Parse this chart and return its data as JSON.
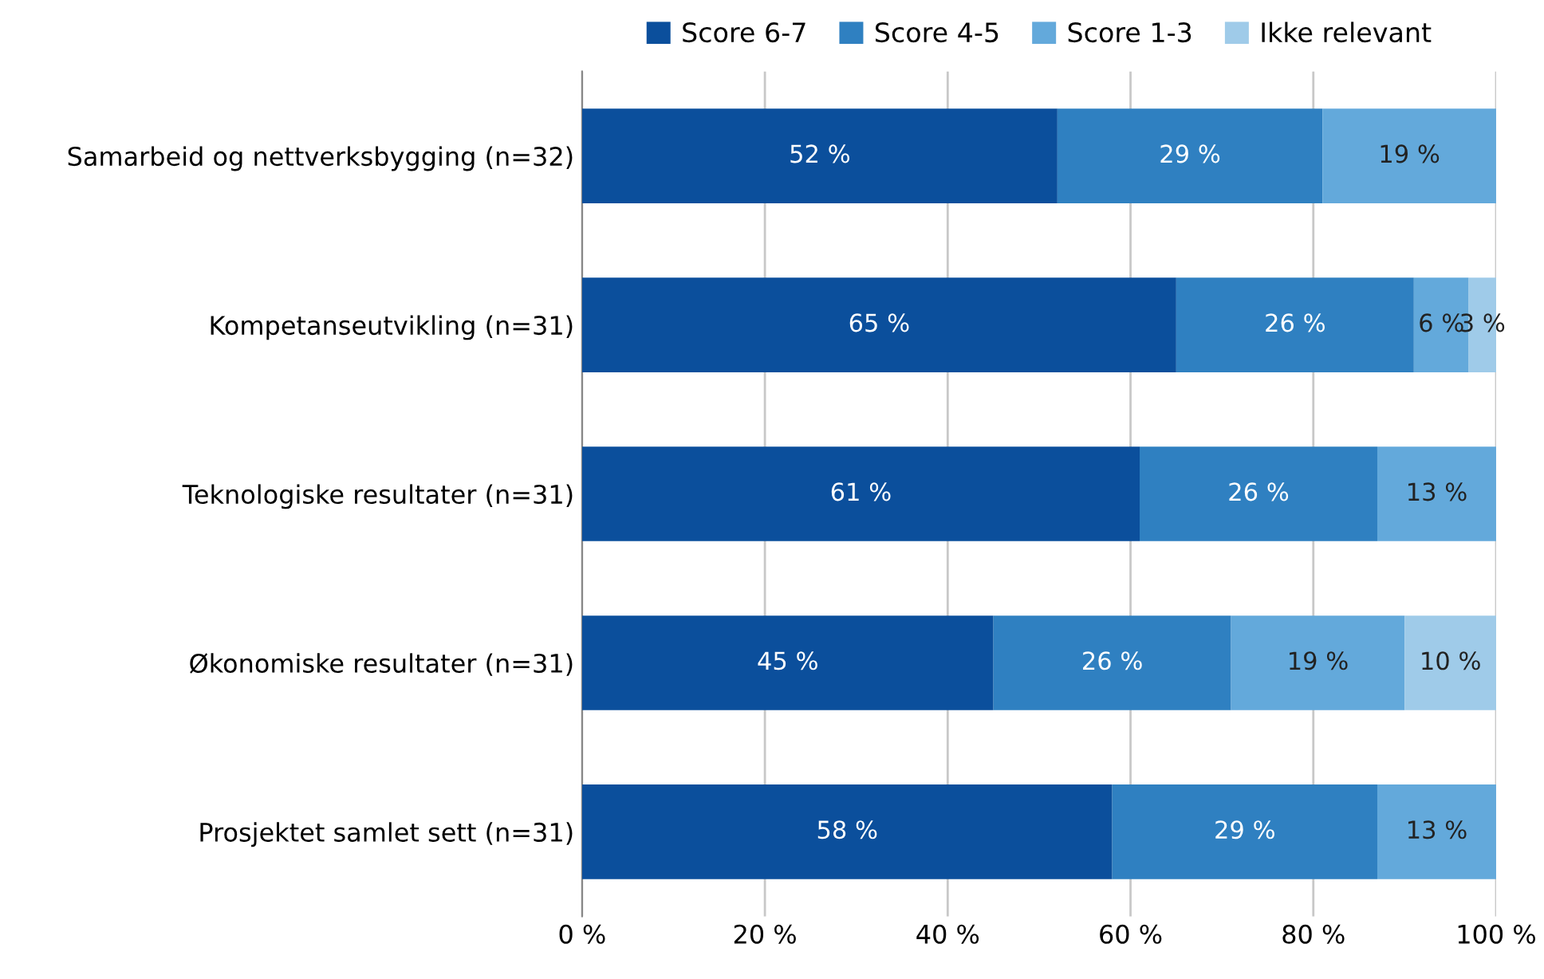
{
  "chart_data": {
    "type": "bar",
    "orientation": "horizontal",
    "stacked": true,
    "categories": [
      "Samarbeid og nettverksbygging (n=32)",
      "Kompetanseutvikling (n=31)",
      "Teknologiske resultater (n=31)",
      "Økonomiske resultater (n=31)",
      "Prosjektet samlet sett (n=31)"
    ],
    "series": [
      {
        "name": "Score 6-7",
        "color": "#0b4f9c",
        "values": [
          52,
          65,
          61,
          45,
          58
        ],
        "value_labels": [
          "52 %",
          "65 %",
          "61 %",
          "45 %",
          "58 %"
        ]
      },
      {
        "name": "Score 4-5",
        "color": "#2f80c1",
        "values": [
          29,
          26,
          26,
          26,
          29
        ],
        "value_labels": [
          "29 %",
          "26 %",
          "26 %",
          "26 %",
          "29 %"
        ]
      },
      {
        "name": "Score 1-3",
        "color": "#63a9db",
        "values": [
          19,
          6,
          13,
          19,
          13
        ],
        "value_labels": [
          "19 %",
          "6 %",
          "13 %",
          "19 %",
          "13 %"
        ]
      },
      {
        "name": "Ikke relevant",
        "color": "#9fcbe9",
        "values": [
          0,
          3,
          0,
          10,
          0
        ],
        "value_labels": [
          null,
          "3 %",
          null,
          "10 %",
          null
        ]
      }
    ],
    "xlim": [
      0,
      100
    ],
    "xticks": [
      {
        "value": 0,
        "label": "0 %"
      },
      {
        "value": 20,
        "label": "20 %"
      },
      {
        "value": 40,
        "label": "40 %"
      },
      {
        "value": 60,
        "label": "60 %"
      },
      {
        "value": 80,
        "label": "80 %"
      },
      {
        "value": 100,
        "label": "100 %"
      }
    ],
    "grid": "x",
    "legend": "top"
  }
}
